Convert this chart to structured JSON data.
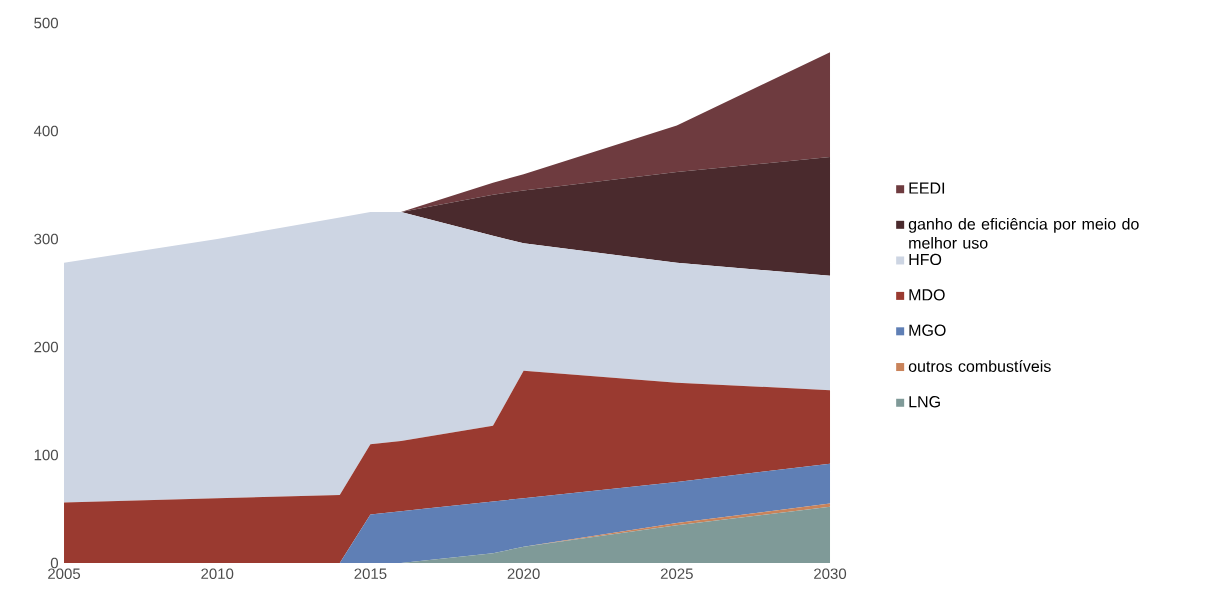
{
  "chart_data": {
    "type": "area",
    "stacked": true,
    "legend": "right",
    "x": [
      2005,
      2010,
      2014,
      2015,
      2016,
      2019,
      2020,
      2025,
      2030
    ],
    "xlim": [
      2005,
      2030
    ],
    "ylim": [
      0,
      500
    ],
    "xticks": [
      2005,
      2010,
      2015,
      2020,
      2025,
      2030
    ],
    "yticks": [
      0,
      100,
      200,
      300,
      400,
      500
    ],
    "series": [
      {
        "name": "LNG",
        "color": "#7f9a98",
        "values": [
          0,
          0,
          0,
          0,
          0,
          9,
          15,
          35,
          52
        ]
      },
      {
        "name": "outros combustíveis",
        "color": "#c9835a",
        "values": [
          0,
          0,
          0,
          0,
          0,
          0,
          0,
          2,
          3
        ]
      },
      {
        "name": "MGO",
        "color": "#5f7fb5",
        "values": [
          0,
          0,
          0,
          45,
          48,
          48,
          45,
          38,
          37
        ]
      },
      {
        "name": "MDO",
        "color": "#9a3a30",
        "values": [
          56,
          60,
          63,
          65,
          65,
          70,
          118,
          92,
          68
        ]
      },
      {
        "name": "HFO",
        "color": "#cdd5e3",
        "values": [
          222,
          240,
          257,
          215,
          212,
          176,
          118,
          111,
          106
        ]
      },
      {
        "name": "ganho de eficiência por meio do melhor uso",
        "color": "#4a2a2d",
        "values": [
          0,
          0,
          0,
          0,
          0,
          38,
          49,
          84,
          110
        ]
      },
      {
        "name": "EEDI",
        "color": "#6e3b3f",
        "values": [
          0,
          0,
          0,
          0,
          0,
          11,
          15,
          43,
          97
        ]
      }
    ]
  }
}
